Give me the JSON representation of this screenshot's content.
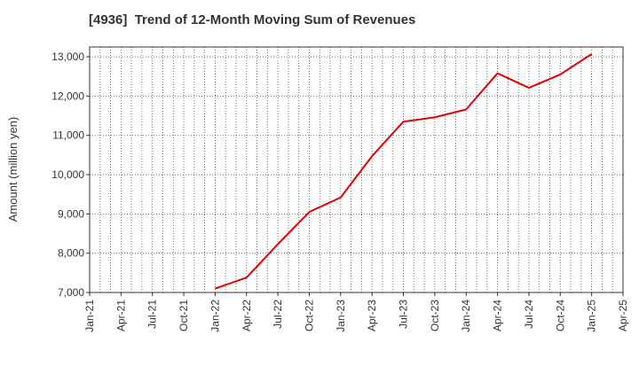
{
  "chart_data": {
    "type": "line",
    "title": "[4936]  Trend of 12-Month Moving Sum of Revenues",
    "xlabel": "",
    "ylabel": "Amount (million yen)",
    "ylim": [
      7000,
      13250
    ],
    "yticks": [
      7000,
      8000,
      9000,
      10000,
      11000,
      12000,
      13000
    ],
    "ytick_labels": [
      "7,000",
      "8,000",
      "9,000",
      "10,000",
      "11,000",
      "12,000",
      "13,000"
    ],
    "xticks": [
      "Jan-21",
      "Apr-21",
      "Jul-21",
      "Oct-21",
      "Jan-22",
      "Apr-22",
      "Jul-22",
      "Oct-22",
      "Jan-23",
      "Apr-23",
      "Jul-23",
      "Oct-23",
      "Jan-24",
      "Apr-24",
      "Jul-24",
      "Oct-24",
      "Jan-25",
      "Apr-25"
    ],
    "grid": true,
    "line_color": "#e60000",
    "series": [
      {
        "x": [
          "Jan-22",
          "Apr-22",
          "Jul-22",
          "Oct-22",
          "Jan-23",
          "Apr-23",
          "Jul-23",
          "Oct-23",
          "Jan-24",
          "Apr-24",
          "Jul-24",
          "Oct-24",
          "Jan-25"
        ],
        "values": [
          7100,
          7380,
          8230,
          9050,
          9420,
          10470,
          11350,
          11460,
          11660,
          12580,
          12210,
          12550,
          13070
        ]
      }
    ]
  }
}
